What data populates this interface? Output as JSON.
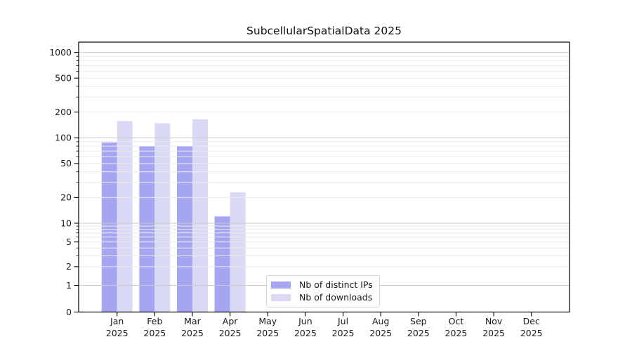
{
  "figure": {
    "title": "SubcellularSpatialData 2025"
  },
  "chart_data": {
    "type": "bar",
    "title": "SubcellularSpatialData 2025",
    "x_categories": [
      "Jan",
      "Feb",
      "Mar",
      "Apr",
      "May",
      "Jun",
      "Jul",
      "Aug",
      "Sep",
      "Oct",
      "Nov",
      "Dec"
    ],
    "x_year": "2025",
    "series": [
      {
        "name": "Nb of distinct IPs",
        "color": "#a5a5f1",
        "values": [
          88,
          80,
          80,
          12,
          0,
          0,
          0,
          0,
          0,
          0,
          0,
          0
        ]
      },
      {
        "name": "Nb of downloads",
        "color": "#dadaf7",
        "values": [
          157,
          148,
          165,
          23,
          0,
          0,
          0,
          0,
          0,
          0,
          0,
          0
        ]
      }
    ],
    "y_scale": "symlog",
    "y_ticks": [
      0,
      1,
      2,
      5,
      10,
      20,
      50,
      100,
      200,
      500,
      1000
    ],
    "y_minor_gridlines": [
      3,
      4,
      6,
      7,
      8,
      9,
      30,
      40,
      60,
      70,
      80,
      90,
      300,
      400,
      600,
      700,
      800,
      900
    ],
    "ylim": [
      0,
      1320
    ],
    "grid": "on",
    "grid_above_bars": true,
    "legend_position": "lower-center",
    "colors": {
      "grid_major": "#cbcbcb",
      "grid_minor": "#ebebeb",
      "axis": "#000000",
      "text": "#1a1a1a",
      "background": "#ffffff"
    }
  }
}
